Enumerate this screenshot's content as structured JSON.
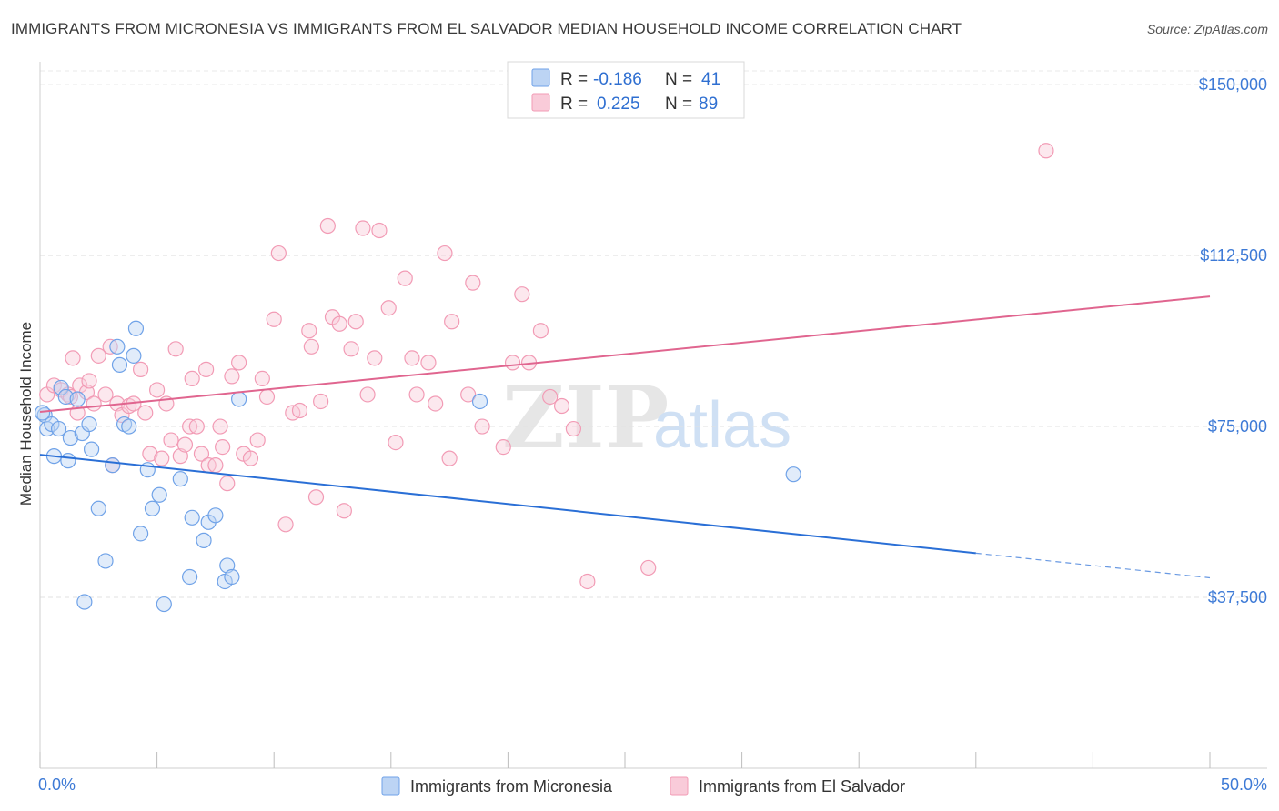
{
  "title": "IMMIGRANTS FROM MICRONESIA VS IMMIGRANTS FROM EL SALVADOR MEDIAN HOUSEHOLD INCOME CORRELATION CHART",
  "source": "Source: ZipAtlas.com",
  "watermark": {
    "zip": "ZIP",
    "atlas": "atlas"
  },
  "colors": {
    "micronesia": "#6fa2e8",
    "micronesia_line": "#2a6fd6",
    "el_salvador": "#f29bb5",
    "el_salvador_line": "#e0658f",
    "tick_text": "#3d7ad6"
  },
  "legend": {
    "rows": [
      {
        "r_label": "R =",
        "r_value": "-0.186",
        "n_label": "N =",
        "n_value": "41"
      },
      {
        "r_label": "R =",
        "r_value": "0.225",
        "n_label": "N =",
        "n_value": "89"
      }
    ]
  },
  "chart_data": {
    "type": "scatter",
    "xlabel": "",
    "ylabel": "Median Household Income",
    "xlim": [
      0,
      50
    ],
    "ylim": [
      0,
      157000
    ],
    "x_tick_labels": [
      "0.0%",
      "50.0%"
    ],
    "y_ticks": [
      37500,
      75000,
      112500,
      150000
    ],
    "y_tick_labels": [
      "$37,500",
      "$75,000",
      "$112,500",
      "$150,000"
    ],
    "grid": true,
    "legend_position": "top-center",
    "series": [
      {
        "name": "Immigrants from Micronesia",
        "points": [
          [
            0.2,
            77500
          ],
          [
            0.3,
            74500
          ],
          [
            0.5,
            75500
          ],
          [
            0.6,
            68500
          ],
          [
            0.8,
            74500
          ],
          [
            0.9,
            83500
          ],
          [
            1.1,
            81500
          ],
          [
            1.2,
            67500
          ],
          [
            1.3,
            72500
          ],
          [
            1.6,
            81000
          ],
          [
            1.8,
            73500
          ],
          [
            1.9,
            36500
          ],
          [
            2.1,
            75500
          ],
          [
            2.2,
            70000
          ],
          [
            2.5,
            57000
          ],
          [
            2.8,
            45500
          ],
          [
            3.1,
            66500
          ],
          [
            3.3,
            92500
          ],
          [
            3.4,
            88500
          ],
          [
            3.6,
            75500
          ],
          [
            3.8,
            75000
          ],
          [
            4.0,
            90500
          ],
          [
            4.1,
            96500
          ],
          [
            4.3,
            51500
          ],
          [
            4.6,
            65500
          ],
          [
            4.8,
            57000
          ],
          [
            5.1,
            60000
          ],
          [
            5.3,
            36000
          ],
          [
            6.0,
            63500
          ],
          [
            6.4,
            42000
          ],
          [
            6.5,
            55000
          ],
          [
            7.0,
            50000
          ],
          [
            7.2,
            54000
          ],
          [
            7.5,
            55500
          ],
          [
            7.9,
            41000
          ],
          [
            8.0,
            44500
          ],
          [
            8.2,
            42000
          ],
          [
            8.5,
            81000
          ],
          [
            18.8,
            80500
          ],
          [
            32.2,
            64500
          ],
          [
            0.1,
            78000
          ]
        ],
        "trend": {
          "x0": 0,
          "y0": 68800,
          "x1": 40,
          "y1": 47200,
          "dash_x1": 50,
          "dash_y1": 41800
        }
      },
      {
        "name": "Immigrants from El Salvador",
        "points": [
          [
            0.3,
            82000
          ],
          [
            0.6,
            84000
          ],
          [
            0.9,
            83000
          ],
          [
            1.2,
            82000
          ],
          [
            1.3,
            81500
          ],
          [
            1.4,
            90000
          ],
          [
            1.6,
            78000
          ],
          [
            1.7,
            84000
          ],
          [
            2.0,
            82500
          ],
          [
            2.1,
            85000
          ],
          [
            2.3,
            80000
          ],
          [
            2.5,
            90500
          ],
          [
            2.8,
            82000
          ],
          [
            3.0,
            92500
          ],
          [
            3.1,
            66500
          ],
          [
            3.3,
            80000
          ],
          [
            3.5,
            77500
          ],
          [
            3.8,
            79500
          ],
          [
            4.0,
            80000
          ],
          [
            4.3,
            87500
          ],
          [
            4.5,
            78000
          ],
          [
            4.7,
            69000
          ],
          [
            5.0,
            83000
          ],
          [
            5.2,
            68000
          ],
          [
            5.4,
            80000
          ],
          [
            5.6,
            72000
          ],
          [
            5.8,
            92000
          ],
          [
            6.0,
            68500
          ],
          [
            6.2,
            71000
          ],
          [
            6.4,
            75000
          ],
          [
            6.5,
            85500
          ],
          [
            6.7,
            75000
          ],
          [
            6.9,
            69000
          ],
          [
            7.1,
            87500
          ],
          [
            7.2,
            66500
          ],
          [
            7.5,
            66500
          ],
          [
            7.7,
            75000
          ],
          [
            7.8,
            70500
          ],
          [
            8.0,
            62500
          ],
          [
            8.2,
            86000
          ],
          [
            8.5,
            89000
          ],
          [
            8.7,
            69000
          ],
          [
            9.0,
            68000
          ],
          [
            9.3,
            72000
          ],
          [
            9.5,
            85500
          ],
          [
            9.7,
            81500
          ],
          [
            10.0,
            98500
          ],
          [
            10.2,
            113000
          ],
          [
            10.5,
            53500
          ],
          [
            10.8,
            78000
          ],
          [
            11.1,
            78500
          ],
          [
            11.5,
            96000
          ],
          [
            11.6,
            92500
          ],
          [
            11.8,
            59500
          ],
          [
            12.0,
            80500
          ],
          [
            12.3,
            119000
          ],
          [
            12.5,
            99000
          ],
          [
            12.8,
            97500
          ],
          [
            13.0,
            56500
          ],
          [
            13.3,
            92000
          ],
          [
            13.5,
            98000
          ],
          [
            13.8,
            118500
          ],
          [
            14.0,
            82000
          ],
          [
            14.3,
            90000
          ],
          [
            14.5,
            118000
          ],
          [
            14.9,
            101000
          ],
          [
            15.2,
            71500
          ],
          [
            15.6,
            107500
          ],
          [
            15.9,
            90000
          ],
          [
            16.1,
            82000
          ],
          [
            16.6,
            89000
          ],
          [
            16.9,
            80000
          ],
          [
            17.3,
            113000
          ],
          [
            17.5,
            68000
          ],
          [
            17.6,
            98000
          ],
          [
            18.3,
            82000
          ],
          [
            18.5,
            106500
          ],
          [
            18.9,
            75000
          ],
          [
            19.8,
            70500
          ],
          [
            20.2,
            89000
          ],
          [
            20.6,
            104000
          ],
          [
            20.9,
            89000
          ],
          [
            21.4,
            96000
          ],
          [
            21.8,
            81500
          ],
          [
            22.3,
            79500
          ],
          [
            22.8,
            74500
          ],
          [
            23.4,
            41000
          ],
          [
            26.0,
            44000
          ],
          [
            43.0,
            135500
          ]
        ],
        "trend": {
          "x0": 0,
          "y0": 78200,
          "x1": 50,
          "y1": 103500
        }
      }
    ]
  },
  "bottom_legend": [
    "Immigrants from Micronesia",
    "Immigrants from El Salvador"
  ]
}
